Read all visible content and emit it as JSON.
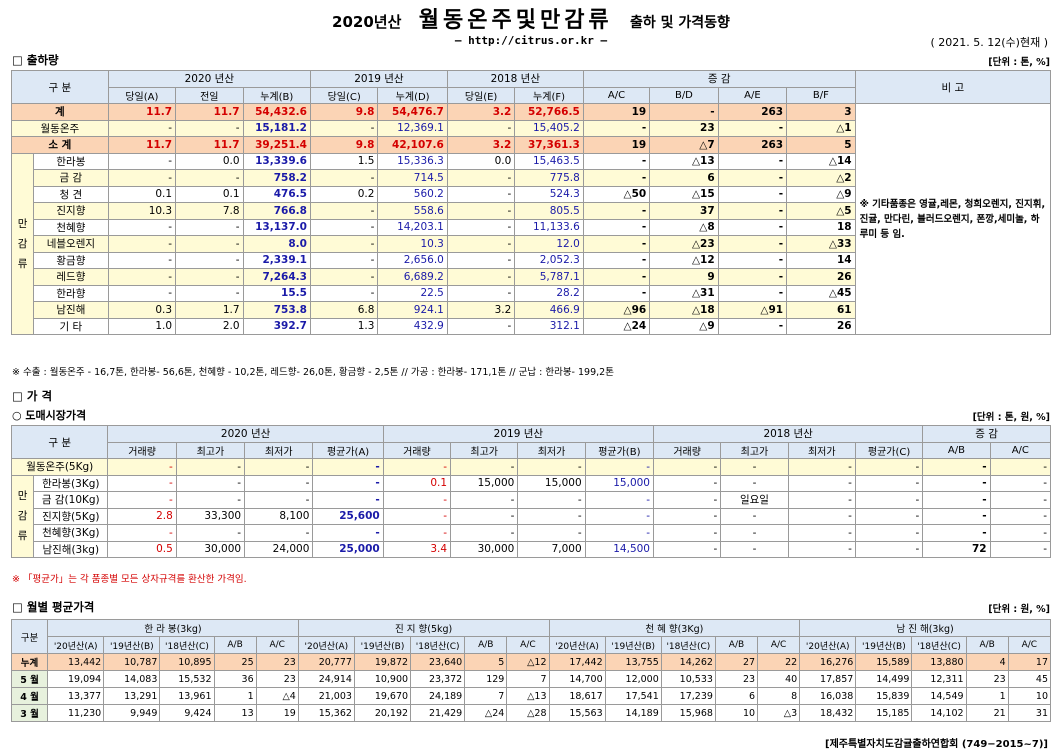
{
  "header": {
    "year_label": "2020년산",
    "main_title": "월동온주및만감류",
    "subtitle": "출하 및 가격동향",
    "url": "– http://citrus.or.kr –",
    "date": "( 2021. 5. 12(수)현재 )"
  },
  "shipment": {
    "section_title": "□ 출하량",
    "unit": "[단위 : 톤, %]",
    "head": {
      "gubun": "구 분",
      "y2020": "2020 년산",
      "y2019": "2019 년산",
      "y2018": "2018 년산",
      "change": "증 감",
      "remark": "비 고",
      "cols": [
        "당일(A)",
        "전일",
        "누계(B)",
        "당일(C)",
        "누계(D)",
        "당일(E)",
        "누계(F)",
        "A/C",
        "B/D",
        "A/E",
        "B/F"
      ]
    },
    "rows": [
      {
        "label": "계",
        "v": [
          "11.7",
          "11.7",
          "54,432.6",
          "9.8",
          "54,476.7",
          "3.2",
          "52,766.5",
          "19",
          "-",
          "263",
          "3"
        ]
      },
      {
        "label": "월동온주",
        "v": [
          "-",
          "-",
          "15,181.2",
          "-",
          "12,369.1",
          "-",
          "15,405.2",
          "-",
          "23",
          "-",
          "△1"
        ]
      },
      {
        "label": "소 계",
        "v": [
          "11.7",
          "11.7",
          "39,251.4",
          "9.8",
          "42,107.6",
          "3.2",
          "37,361.3",
          "19",
          "△7",
          "263",
          "5"
        ]
      },
      {
        "label": "한라봉",
        "v": [
          "-",
          "0.0",
          "13,339.6",
          "1.5",
          "15,336.3",
          "0.0",
          "15,463.5",
          "-",
          "△13",
          "-",
          "△14"
        ]
      },
      {
        "label": "금 감",
        "v": [
          "-",
          "-",
          "758.2",
          "-",
          "714.5",
          "-",
          "775.8",
          "-",
          "6",
          "-",
          "△2"
        ]
      },
      {
        "label": "청 견",
        "v": [
          "0.1",
          "0.1",
          "476.5",
          "0.2",
          "560.2",
          "-",
          "524.3",
          "△50",
          "△15",
          "-",
          "△9"
        ]
      },
      {
        "label": "진지향",
        "v": [
          "10.3",
          "7.8",
          "766.8",
          "-",
          "558.6",
          "-",
          "805.5",
          "-",
          "37",
          "-",
          "△5"
        ]
      },
      {
        "label": "천혜향",
        "v": [
          "-",
          "-",
          "13,137.0",
          "-",
          "14,203.1",
          "-",
          "11,133.6",
          "-",
          "△8",
          "-",
          "18"
        ]
      },
      {
        "label": "네블오렌지",
        "v": [
          "-",
          "-",
          "8.0",
          "-",
          "10.3",
          "-",
          "12.0",
          "-",
          "△23",
          "-",
          "△33"
        ]
      },
      {
        "label": "황금향",
        "v": [
          "-",
          "-",
          "2,339.1",
          "-",
          "2,656.0",
          "-",
          "2,052.3",
          "-",
          "△12",
          "-",
          "14"
        ]
      },
      {
        "label": "레드향",
        "v": [
          "-",
          "-",
          "7,264.3",
          "-",
          "6,689.2",
          "-",
          "5,787.1",
          "-",
          "9",
          "-",
          "26"
        ]
      },
      {
        "label": "한라향",
        "v": [
          "-",
          "-",
          "15.5",
          "-",
          "22.5",
          "-",
          "28.2",
          "-",
          "△31",
          "-",
          "△45"
        ]
      },
      {
        "label": "남진해",
        "v": [
          "0.3",
          "1.7",
          "753.8",
          "6.8",
          "924.1",
          "3.2",
          "466.9",
          "△96",
          "△18",
          "△91",
          "61"
        ]
      },
      {
        "label": "기 타",
        "v": [
          "1.0",
          "2.0",
          "392.7",
          "1.3",
          "432.9",
          "-",
          "312.1",
          "△24",
          "△9",
          "-",
          "26"
        ]
      }
    ],
    "mangam_label": "만 감 류",
    "remark_text": "※ 기타품종은 영귤,레몬, 청희오렌지, 진지휘, 진귤, 만다린, 블러드오렌지, 폰깡,세미놀, 하루미 등 임.",
    "export_note": "※ 수출 : 월동온주 - 16,7톤, 한라봉- 56,6톤, 천혜향 - 10,2톤, 레드향- 26,0톤, 황금향 - 2,5톤 // 가공 : 한라봉- 171,1톤 // 군납 : 한라봉- 199,2톤"
  },
  "price": {
    "section_title": "□ 가 격",
    "sub_title": "○ 도매시장가격",
    "unit": "[단위 : 톤, 원, %]",
    "head": {
      "gubun": "구 분",
      "y2020": "2020 년산",
      "y2019": "2019 년산",
      "y2018": "2018 년산",
      "change": "증 감",
      "cols": [
        "거래량",
        "최고가",
        "최저가",
        "평균가(A)",
        "거래량",
        "최고가",
        "최저가",
        "평균가(B)",
        "거래량",
        "최고가",
        "최저가",
        "평균가(C)",
        "A/B",
        "A/C"
      ]
    },
    "rows": [
      {
        "label": "월동온주(5Kg)",
        "v": [
          "-",
          "-",
          "-",
          "-",
          "-",
          "-",
          "-",
          "-",
          "-",
          "-",
          "-",
          "-",
          "-",
          "-"
        ]
      },
      {
        "label": "한라봉(3Kg)",
        "v": [
          "-",
          "-",
          "-",
          "-",
          "0.1",
          "15,000",
          "15,000",
          "15,000",
          "-",
          "-",
          "-",
          "-",
          "-",
          "-"
        ]
      },
      {
        "label": "금 감(10Kg)",
        "v": [
          "-",
          "-",
          "-",
          "-",
          "-",
          "-",
          "-",
          "-",
          "-",
          "일요일",
          "-",
          "-",
          "-",
          "-"
        ]
      },
      {
        "label": "진지향(5Kg)",
        "v": [
          "2.8",
          "33,300",
          "8,100",
          "25,600",
          "-",
          "-",
          "-",
          "-",
          "-",
          "-",
          "-",
          "-",
          "-",
          "-"
        ]
      },
      {
        "label": "천혜향(3Kg)",
        "v": [
          "-",
          "-",
          "-",
          "-",
          "-",
          "-",
          "-",
          "-",
          "-",
          "-",
          "-",
          "-",
          "-",
          "-"
        ]
      },
      {
        "label": "남진해(3kg)",
        "v": [
          "0.5",
          "30,000",
          "24,000",
          "25,000",
          "3.4",
          "30,000",
          "7,000",
          "14,500",
          "-",
          "-",
          "-",
          "-",
          "72",
          "-"
        ]
      }
    ],
    "mangam_label": "만 감 류",
    "avg_note": "※ 「평균가」는 각 품종별 모든 상자규격를 환산한 가격임."
  },
  "monthly": {
    "section_title": "□ 월별 평균가격",
    "unit": "[단위 : 원, %]",
    "groups": [
      "한 라 봉(3kg)",
      "진 지 향(5kg)",
      "천 혜 향(3Kg)",
      "남 진 해(3kg)"
    ],
    "gubun": "구분",
    "cols": [
      "'20년산(A)",
      "'19년산(B)",
      "'18년산(C)",
      "A/B",
      "A/C"
    ],
    "rows": [
      {
        "label": "누계",
        "v": [
          "13,442",
          "10,787",
          "10,895",
          "25",
          "23",
          "20,777",
          "19,872",
          "23,640",
          "5",
          "△12",
          "17,442",
          "13,755",
          "14,262",
          "27",
          "22",
          "16,276",
          "15,589",
          "13,880",
          "4",
          "17"
        ]
      },
      {
        "label": "5 월",
        "v": [
          "19,094",
          "14,083",
          "15,532",
          "36",
          "23",
          "24,914",
          "10,900",
          "23,372",
          "129",
          "7",
          "14,700",
          "12,000",
          "10,533",
          "23",
          "40",
          "17,857",
          "14,499",
          "12,311",
          "23",
          "45"
        ]
      },
      {
        "label": "4 월",
        "v": [
          "13,377",
          "13,291",
          "13,961",
          "1",
          "△4",
          "21,003",
          "19,670",
          "24,189",
          "7",
          "△13",
          "18,617",
          "17,541",
          "17,239",
          "6",
          "8",
          "16,038",
          "15,839",
          "14,549",
          "1",
          "10"
        ]
      },
      {
        "label": "3 월",
        "v": [
          "11,230",
          "9,949",
          "9,424",
          "13",
          "19",
          "15,362",
          "20,192",
          "21,429",
          "△24",
          "△28",
          "15,563",
          "14,189",
          "15,968",
          "10",
          "△3",
          "18,432",
          "15,185",
          "14,102",
          "21",
          "31"
        ]
      }
    ]
  },
  "footer": "[제주특별자치도감귤출하연합회 (749−2015~7)]"
}
